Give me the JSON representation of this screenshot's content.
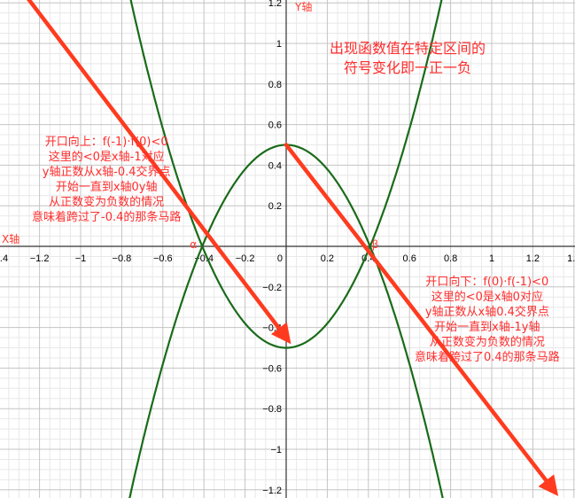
{
  "chart_data": {
    "type": "line",
    "xlabel": "X轴",
    "ylabel": "Y轴",
    "xlim": [
      -1.4,
      1.4
    ],
    "ylim": [
      -1.2,
      1.2
    ],
    "grid": true,
    "x_ticks": [
      "−1.4",
      "−1.2",
      "−1",
      "−0.8",
      "−0.6",
      "−0.4",
      "−0.2",
      "0",
      "0.2",
      "0.4",
      "0.6",
      "0.8",
      "1",
      "1.2",
      "1.4"
    ],
    "y_ticks": [
      "1.2",
      "1",
      "0.8",
      "0.6",
      "0.4",
      "0.2",
      "−0.2",
      "−0.4",
      "−0.6",
      "−0.8",
      "−1",
      "−1.2"
    ],
    "curve_color": "#1a6b1a",
    "arrow_color": "#ff3b1f",
    "series": [
      {
        "kind": "parabola-up",
        "x": [
          -0.6,
          -0.4,
          -0.2,
          0,
          0.2,
          0.4,
          0.6
        ],
        "y": [
          0.58,
          -0.02,
          -0.38,
          -0.5,
          -0.38,
          -0.02,
          0.58
        ]
      },
      {
        "kind": "parabola-down",
        "x": [
          -0.6,
          -0.4,
          -0.2,
          0,
          0.2,
          0.4,
          0.6
        ],
        "y": [
          -0.58,
          0.02,
          0.38,
          0.5,
          0.38,
          0.02,
          -0.58
        ]
      }
    ],
    "arrows": [
      {
        "from": [
          -1.3,
          1.28
        ],
        "to": [
          0,
          -0.45
        ]
      },
      {
        "from": [
          0,
          0.5
        ],
        "to": [
          1.3,
          -1.2
        ]
      }
    ],
    "point_labels": [
      {
        "text": "α",
        "x": -0.4,
        "y": 0
      },
      {
        "text": "β",
        "x": 0.4,
        "y": 0
      }
    ],
    "annotations": {
      "title_lines": [
        "出现函数值在特定区间的",
        "符号变化即一正一负"
      ],
      "left_lines": [
        "开口向上：f(-1)·f(0)<0",
        "这里的<0是x轴-1对应",
        "y轴正数从x轴-0.4交界点",
        "开始一直到x轴0y轴",
        "从正数变为负数的情况",
        "意味着跨过了-0.4的那条马路"
      ],
      "right_lines": [
        "开口向下：f(0)·f(-1)<0",
        "这里的<0是x轴0对应",
        "y轴正数从x轴0.4交界点",
        "开始一直到x轴-1y轴",
        "从正数变为负数的情况",
        "意味着跨过了0.4的那条马路"
      ]
    }
  }
}
